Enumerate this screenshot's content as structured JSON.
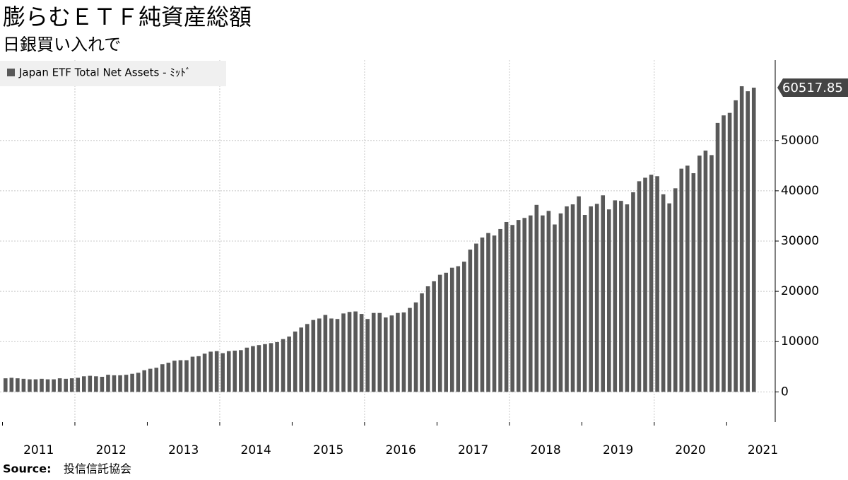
{
  "chart_data": {
    "type": "bar",
    "title": "膨らむＥＴＦ純資産総額",
    "subtitle": "日銀買い入れで",
    "source_label": "Source:",
    "source": "投信信託協会",
    "series": [
      {
        "name": "Japan ETF Total Net Assets - ﾐｯﾄﾞ",
        "color": "#595959",
        "values": [
          2700,
          2800,
          2700,
          2600,
          2500,
          2500,
          2600,
          2500,
          2500,
          2700,
          2600,
          2700,
          2800,
          3100,
          3200,
          3100,
          3000,
          3400,
          3300,
          3300,
          3400,
          3600,
          3800,
          4300,
          4600,
          4800,
          5500,
          5800,
          6200,
          6300,
          6300,
          7000,
          7100,
          7600,
          8000,
          8100,
          7700,
          8100,
          8200,
          8300,
          8800,
          9100,
          9300,
          9500,
          9700,
          9900,
          10500,
          11000,
          12000,
          12800,
          13500,
          14300,
          14600,
          15300,
          14600,
          14500,
          15600,
          15900,
          16000,
          15500,
          14500,
          15700,
          15700,
          14800,
          15200,
          15700,
          15800,
          16700,
          17800,
          19600,
          21000,
          22000,
          23300,
          23700,
          24700,
          25000,
          25900,
          28300,
          29500,
          30700,
          31600,
          31100,
          32400,
          33800,
          33200,
          34200,
          34600,
          35100,
          37200,
          35100,
          36000,
          33300,
          35500,
          36900,
          37300,
          38900,
          35200,
          36900,
          37400,
          39100,
          36300,
          38100,
          38000,
          37300,
          39700,
          41900,
          42600,
          43200,
          42900,
          39300,
          37500,
          40500,
          44400,
          45000,
          43500,
          47000,
          48000,
          47100,
          53500,
          55000,
          55500,
          58000,
          60800,
          59800,
          60517.85
        ]
      }
    ],
    "x_labels": [
      "2011",
      "2012",
      "2013",
      "2014",
      "2015",
      "2016",
      "2017",
      "2018",
      "2019",
      "2020",
      "2021"
    ],
    "ylim": [
      -6000,
      66000
    ],
    "yticks": [
      0,
      10000,
      20000,
      30000,
      40000,
      50000
    ],
    "grid": true
  }
}
